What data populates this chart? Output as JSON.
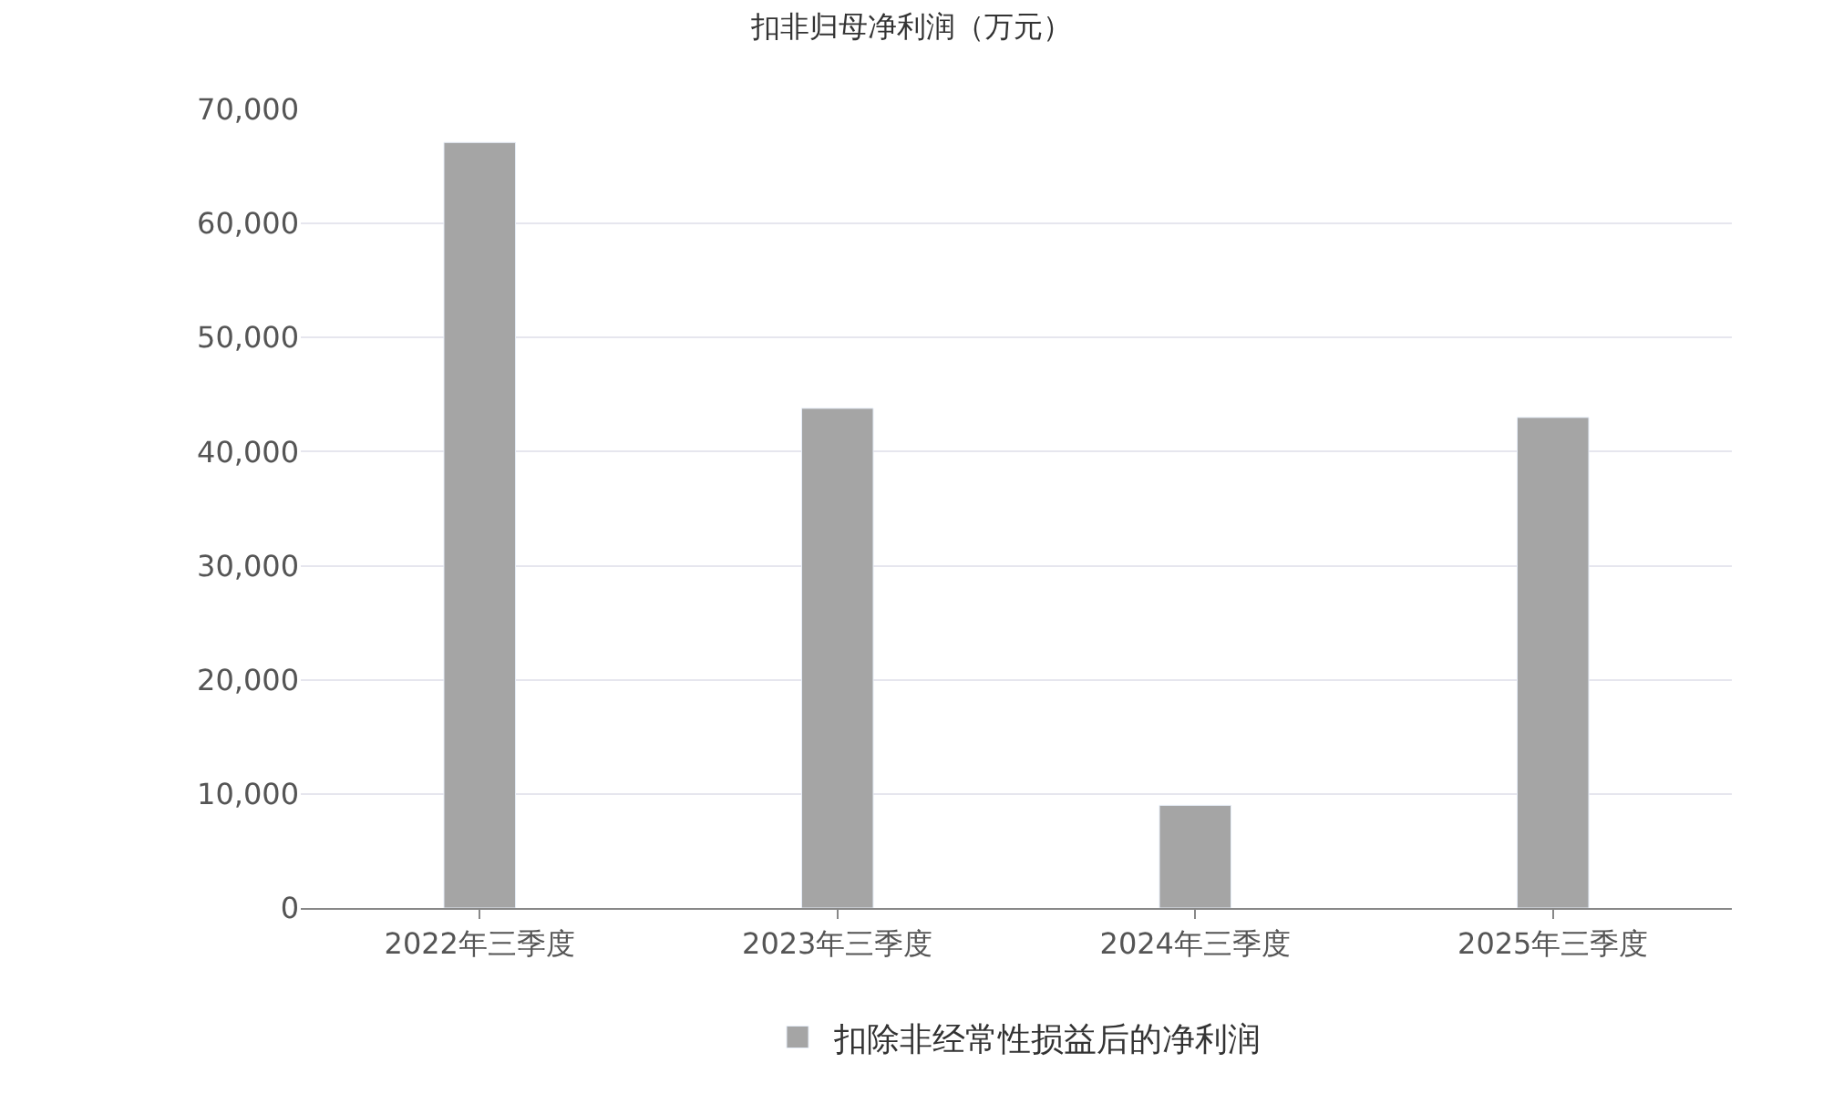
{
  "chart_data": {
    "type": "bar",
    "title": "扣非归母净利润（万元）",
    "categories": [
      "2022年三季度",
      "2023年三季度",
      "2024年三季度",
      "2025年三季度"
    ],
    "series": [
      {
        "name": "扣除非经常性损益后的净利润",
        "color": "#a5a5a5",
        "values": [
          67100,
          43800,
          9000,
          43000
        ]
      }
    ],
    "ylim": [
      0,
      70000
    ],
    "yticks": [
      {
        "value": 0,
        "label": "0"
      },
      {
        "value": 10000,
        "label": "10,000"
      },
      {
        "value": 20000,
        "label": "20,000"
      },
      {
        "value": 30000,
        "label": "30,000"
      },
      {
        "value": 40000,
        "label": "40,000"
      },
      {
        "value": 50000,
        "label": "50,000"
      },
      {
        "value": 60000,
        "label": "60,000"
      },
      {
        "value": 70000,
        "label": "70,000"
      }
    ],
    "grid": "y",
    "legend": "bottom"
  }
}
